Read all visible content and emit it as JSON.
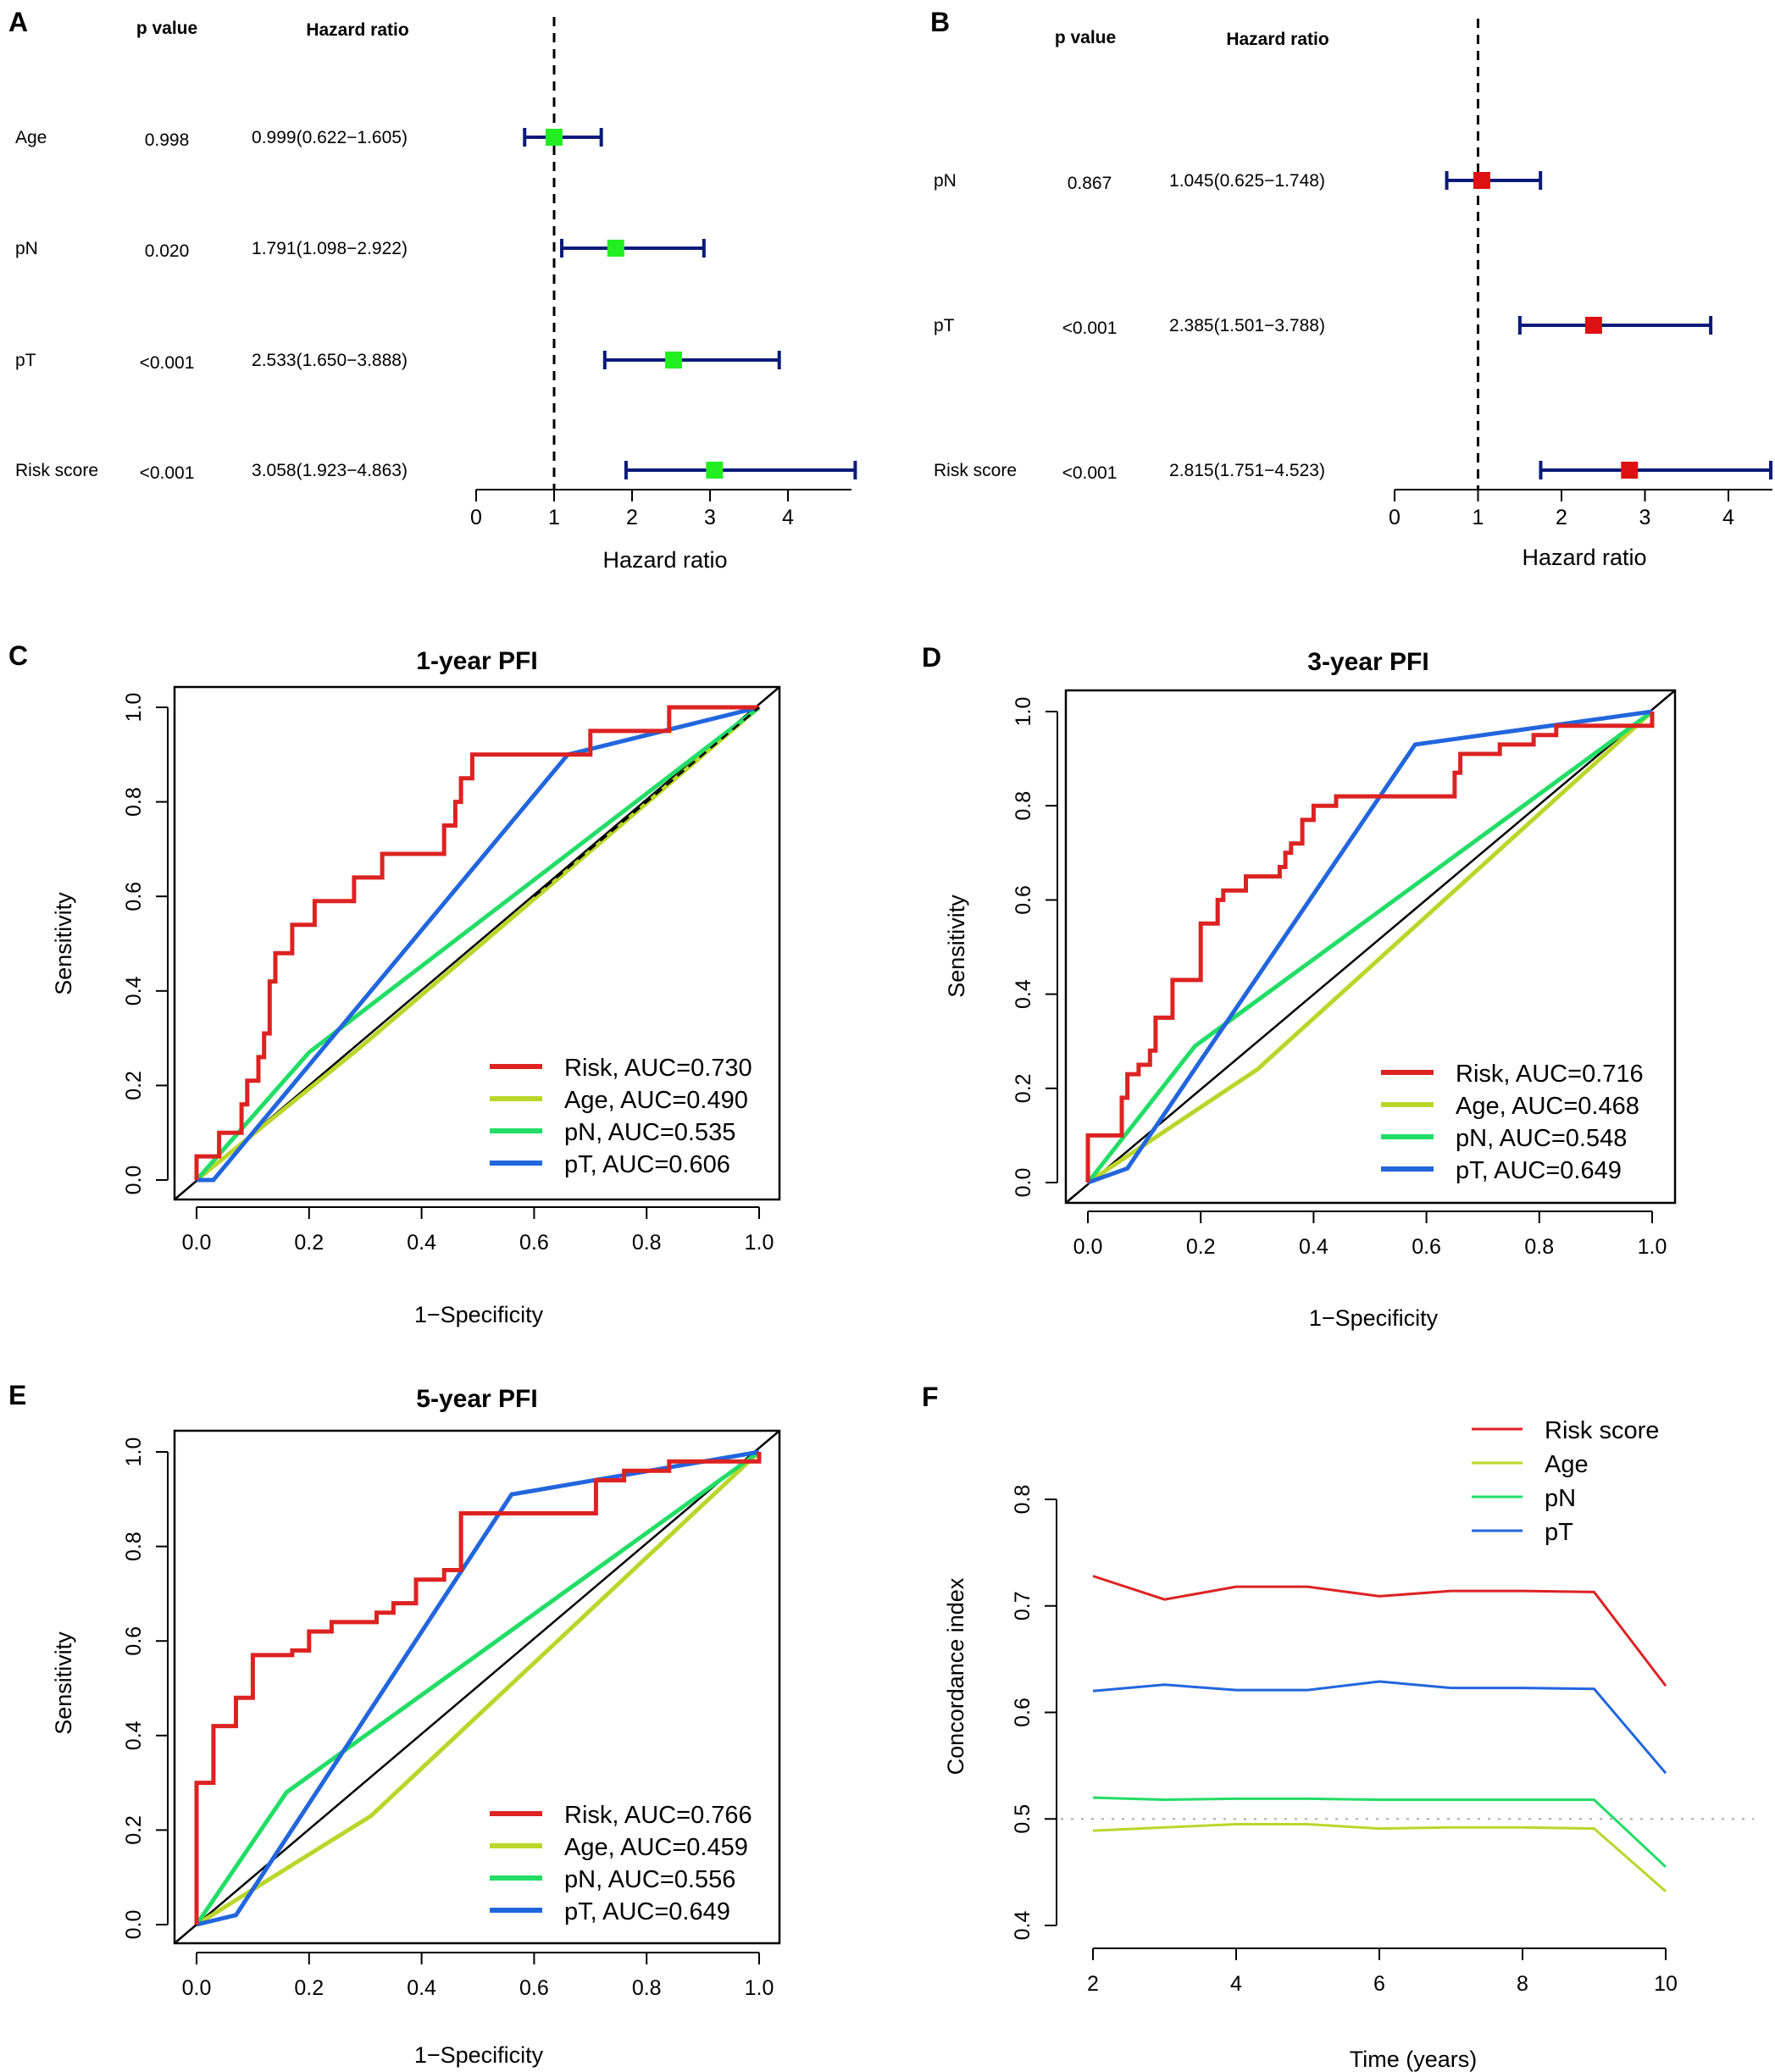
{
  "chart_data": [
    {
      "type": "forest",
      "panel": "A",
      "headers": {
        "p": "p value",
        "hr": "Hazard ratio"
      },
      "rows": [
        {
          "name": "Age",
          "p": "0.998",
          "hr_text": "0.999(0.622−1.605)",
          "hr": 0.999,
          "lo": 0.622,
          "hi": 1.605
        },
        {
          "name": "pN",
          "p": "0.020",
          "hr_text": "1.791(1.098−2.922)",
          "hr": 1.791,
          "lo": 1.098,
          "hi": 2.922
        },
        {
          "name": "pT",
          "p": "<0.001",
          "hr_text": "2.533(1.650−3.888)",
          "hr": 2.533,
          "lo": 1.65,
          "hi": 3.888
        },
        {
          "name": "Risk score",
          "p": "<0.001",
          "hr_text": "3.058(1.923−4.863)",
          "hr": 3.058,
          "lo": 1.923,
          "hi": 4.863
        }
      ],
      "xticks": [
        "0",
        "1",
        "2",
        "3",
        "4"
      ],
      "xlabel": "Hazard ratio",
      "marker_color": "#22ee22",
      "ref_line": 1
    },
    {
      "type": "forest",
      "panel": "B",
      "headers": {
        "p": "p value",
        "hr": "Hazard ratio"
      },
      "rows": [
        {
          "name": "pN",
          "p": "0.867",
          "hr_text": "1.045(0.625−1.748)",
          "hr": 1.045,
          "lo": 0.625,
          "hi": 1.748
        },
        {
          "name": "pT",
          "p": "<0.001",
          "hr_text": "2.385(1.501−3.788)",
          "hr": 2.385,
          "lo": 1.501,
          "hi": 3.788
        },
        {
          "name": "Risk score",
          "p": "<0.001",
          "hr_text": "2.815(1.751−4.523)",
          "hr": 2.815,
          "lo": 1.751,
          "hi": 4.523
        }
      ],
      "xticks": [
        "0",
        "1",
        "2",
        "3",
        "4"
      ],
      "xlabel": "Hazard ratio",
      "marker_color": "#dd1111",
      "ref_line": 1
    },
    {
      "type": "line",
      "panel": "C",
      "title": "1-year PFI",
      "xlabel": "1−Specificity",
      "ylabel": "Sensitivity",
      "xticks": [
        "0.0",
        "0.2",
        "0.4",
        "0.6",
        "0.8",
        "1.0"
      ],
      "yticks": [
        "0.0",
        "0.2",
        "0.4",
        "0.6",
        "0.8",
        "1.0"
      ],
      "xlim": [
        0,
        1
      ],
      "ylim": [
        0,
        1
      ],
      "series": [
        {
          "name": "Risk, AUC=0.730",
          "color": "#dd2222",
          "step": true,
          "points": [
            [
              0,
              0
            ],
            [
              0,
              0.05
            ],
            [
              0.04,
              0.05
            ],
            [
              0.04,
              0.1
            ],
            [
              0.08,
              0.1
            ],
            [
              0.08,
              0.16
            ],
            [
              0.09,
              0.16
            ],
            [
              0.09,
              0.21
            ],
            [
              0.11,
              0.21
            ],
            [
              0.11,
              0.26
            ],
            [
              0.12,
              0.26
            ],
            [
              0.12,
              0.31
            ],
            [
              0.13,
              0.31
            ],
            [
              0.13,
              0.42
            ],
            [
              0.14,
              0.42
            ],
            [
              0.14,
              0.48
            ],
            [
              0.17,
              0.48
            ],
            [
              0.17,
              0.54
            ],
            [
              0.21,
              0.54
            ],
            [
              0.21,
              0.59
            ],
            [
              0.28,
              0.59
            ],
            [
              0.28,
              0.64
            ],
            [
              0.33,
              0.64
            ],
            [
              0.33,
              0.69
            ],
            [
              0.44,
              0.69
            ],
            [
              0.44,
              0.75
            ],
            [
              0.46,
              0.75
            ],
            [
              0.46,
              0.8
            ],
            [
              0.47,
              0.8
            ],
            [
              0.47,
              0.85
            ],
            [
              0.49,
              0.85
            ],
            [
              0.49,
              0.9
            ],
            [
              0.7,
              0.9
            ],
            [
              0.7,
              0.95
            ],
            [
              0.84,
              0.95
            ],
            [
              0.84,
              1
            ],
            [
              1,
              1
            ]
          ]
        },
        {
          "name": "Age, AUC=0.490",
          "color": "#bbd62a",
          "step": false,
          "points": [
            [
              0,
              0
            ],
            [
              0.29,
              0.28
            ],
            [
              1,
              1
            ]
          ]
        },
        {
          "name": "pN, AUC=0.535",
          "color": "#22dd66",
          "step": false,
          "points": [
            [
              0,
              0
            ],
            [
              0.2,
              0.27
            ],
            [
              1,
              1
            ]
          ]
        },
        {
          "name": "pT, AUC=0.606",
          "color": "#2266dd",
          "step": false,
          "points": [
            [
              0,
              0
            ],
            [
              0.03,
              0
            ],
            [
              0.66,
              0.9
            ],
            [
              1,
              1
            ]
          ]
        }
      ]
    },
    {
      "type": "line",
      "panel": "D",
      "title": "3-year PFI",
      "xlabel": "1−Specificity",
      "ylabel": "Sensitivity",
      "xticks": [
        "0.0",
        "0.2",
        "0.4",
        "0.6",
        "0.8",
        "1.0"
      ],
      "yticks": [
        "0.0",
        "0.2",
        "0.4",
        "0.6",
        "0.8",
        "1.0"
      ],
      "xlim": [
        0,
        1
      ],
      "ylim": [
        0,
        1
      ],
      "series": [
        {
          "name": "Risk, AUC=0.716",
          "color": "#dd2222",
          "step": true,
          "points": [
            [
              0,
              0
            ],
            [
              0,
              0.1
            ],
            [
              0.06,
              0.1
            ],
            [
              0.06,
              0.18
            ],
            [
              0.07,
              0.18
            ],
            [
              0.07,
              0.23
            ],
            [
              0.09,
              0.23
            ],
            [
              0.09,
              0.25
            ],
            [
              0.11,
              0.25
            ],
            [
              0.11,
              0.28
            ],
            [
              0.12,
              0.28
            ],
            [
              0.12,
              0.35
            ],
            [
              0.15,
              0.35
            ],
            [
              0.15,
              0.43
            ],
            [
              0.2,
              0.43
            ],
            [
              0.2,
              0.55
            ],
            [
              0.23,
              0.55
            ],
            [
              0.23,
              0.6
            ],
            [
              0.24,
              0.6
            ],
            [
              0.24,
              0.62
            ],
            [
              0.28,
              0.62
            ],
            [
              0.28,
              0.65
            ],
            [
              0.34,
              0.65
            ],
            [
              0.34,
              0.67
            ],
            [
              0.35,
              0.67
            ],
            [
              0.35,
              0.7
            ],
            [
              0.36,
              0.7
            ],
            [
              0.36,
              0.72
            ],
            [
              0.38,
              0.72
            ],
            [
              0.38,
              0.77
            ],
            [
              0.4,
              0.77
            ],
            [
              0.4,
              0.8
            ],
            [
              0.44,
              0.8
            ],
            [
              0.44,
              0.82
            ],
            [
              0.65,
              0.82
            ],
            [
              0.65,
              0.87
            ],
            [
              0.66,
              0.87
            ],
            [
              0.66,
              0.91
            ],
            [
              0.73,
              0.91
            ],
            [
              0.73,
              0.93
            ],
            [
              0.79,
              0.93
            ],
            [
              0.79,
              0.95
            ],
            [
              0.83,
              0.95
            ],
            [
              0.83,
              0.97
            ],
            [
              1,
              0.97
            ],
            [
              1,
              1
            ]
          ]
        },
        {
          "name": "Age, AUC=0.468",
          "color": "#bbd62a",
          "step": false,
          "points": [
            [
              0,
              0
            ],
            [
              0.3,
              0.24
            ],
            [
              1,
              1
            ]
          ]
        },
        {
          "name": "pN, AUC=0.548",
          "color": "#22dd66",
          "step": false,
          "points": [
            [
              0,
              0
            ],
            [
              0.19,
              0.29
            ],
            [
              1,
              1
            ]
          ]
        },
        {
          "name": "pT, AUC=0.649",
          "color": "#2266dd",
          "step": false,
          "points": [
            [
              0,
              0
            ],
            [
              0.07,
              0.03
            ],
            [
              0.58,
              0.93
            ],
            [
              1,
              1
            ]
          ]
        }
      ]
    },
    {
      "type": "line",
      "panel": "E",
      "title": "5-year PFI",
      "xlabel": "1−Specificity",
      "ylabel": "Sensitivity",
      "xticks": [
        "0.0",
        "0.2",
        "0.4",
        "0.6",
        "0.8",
        "1.0"
      ],
      "yticks": [
        "0.0",
        "0.2",
        "0.4",
        "0.6",
        "0.8",
        "1.0"
      ],
      "xlim": [
        0,
        1
      ],
      "ylim": [
        0,
        1
      ],
      "series": [
        {
          "name": "Risk, AUC=0.766",
          "color": "#dd2222",
          "step": true,
          "points": [
            [
              0,
              0
            ],
            [
              0,
              0.3
            ],
            [
              0.03,
              0.3
            ],
            [
              0.03,
              0.42
            ],
            [
              0.07,
              0.42
            ],
            [
              0.07,
              0.48
            ],
            [
              0.1,
              0.48
            ],
            [
              0.1,
              0.57
            ],
            [
              0.17,
              0.57
            ],
            [
              0.17,
              0.58
            ],
            [
              0.2,
              0.58
            ],
            [
              0.2,
              0.62
            ],
            [
              0.24,
              0.62
            ],
            [
              0.24,
              0.64
            ],
            [
              0.32,
              0.64
            ],
            [
              0.32,
              0.66
            ],
            [
              0.35,
              0.66
            ],
            [
              0.35,
              0.68
            ],
            [
              0.39,
              0.68
            ],
            [
              0.39,
              0.73
            ],
            [
              0.44,
              0.73
            ],
            [
              0.44,
              0.75
            ],
            [
              0.47,
              0.75
            ],
            [
              0.47,
              0.87
            ],
            [
              0.71,
              0.87
            ],
            [
              0.71,
              0.94
            ],
            [
              0.76,
              0.94
            ],
            [
              0.76,
              0.96
            ],
            [
              0.84,
              0.96
            ],
            [
              0.84,
              0.98
            ],
            [
              1,
              0.98
            ],
            [
              1,
              1
            ]
          ]
        },
        {
          "name": "Age, AUC=0.459",
          "color": "#bbd62a",
          "step": false,
          "points": [
            [
              0,
              0
            ],
            [
              0.31,
              0.23
            ],
            [
              1,
              1
            ]
          ]
        },
        {
          "name": "pN, AUC=0.556",
          "color": "#22dd66",
          "step": false,
          "points": [
            [
              0,
              0
            ],
            [
              0.16,
              0.28
            ],
            [
              1,
              1
            ]
          ]
        },
        {
          "name": "pT, AUC=0.649",
          "color": "#2266dd",
          "step": false,
          "points": [
            [
              0,
              0
            ],
            [
              0.07,
              0.02
            ],
            [
              0.56,
              0.91
            ],
            [
              1,
              1
            ]
          ]
        }
      ]
    },
    {
      "type": "line",
      "panel": "F",
      "xlabel": "Time (years)",
      "ylabel": "Concordance index",
      "xlim": [
        2,
        10
      ],
      "ylim": [
        0.4,
        0.8
      ],
      "xticks": [
        "2",
        "4",
        "6",
        "8",
        "10"
      ],
      "yticks": [
        "0.4",
        "0.5",
        "0.6",
        "0.7",
        "0.8"
      ],
      "ref_line": 0.5,
      "x": [
        2,
        3,
        4,
        5,
        6,
        7,
        8,
        9,
        10
      ],
      "series": [
        {
          "name": "Risk score",
          "color": "#dd2222",
          "values": [
            0.728,
            0.706,
            0.718,
            0.718,
            0.709,
            0.714,
            0.714,
            0.713,
            0.625
          ]
        },
        {
          "name": "Age",
          "color": "#bbd62a",
          "values": [
            0.489,
            0.492,
            0.495,
            0.495,
            0.491,
            0.492,
            0.492,
            0.491,
            0.432
          ]
        },
        {
          "name": "pN",
          "color": "#22dd66",
          "values": [
            0.52,
            0.518,
            0.519,
            0.519,
            0.518,
            0.518,
            0.518,
            0.518,
            0.455
          ]
        },
        {
          "name": "pT",
          "color": "#2266dd",
          "values": [
            0.62,
            0.626,
            0.621,
            0.621,
            0.629,
            0.623,
            0.623,
            0.622,
            0.543
          ]
        }
      ]
    }
  ]
}
